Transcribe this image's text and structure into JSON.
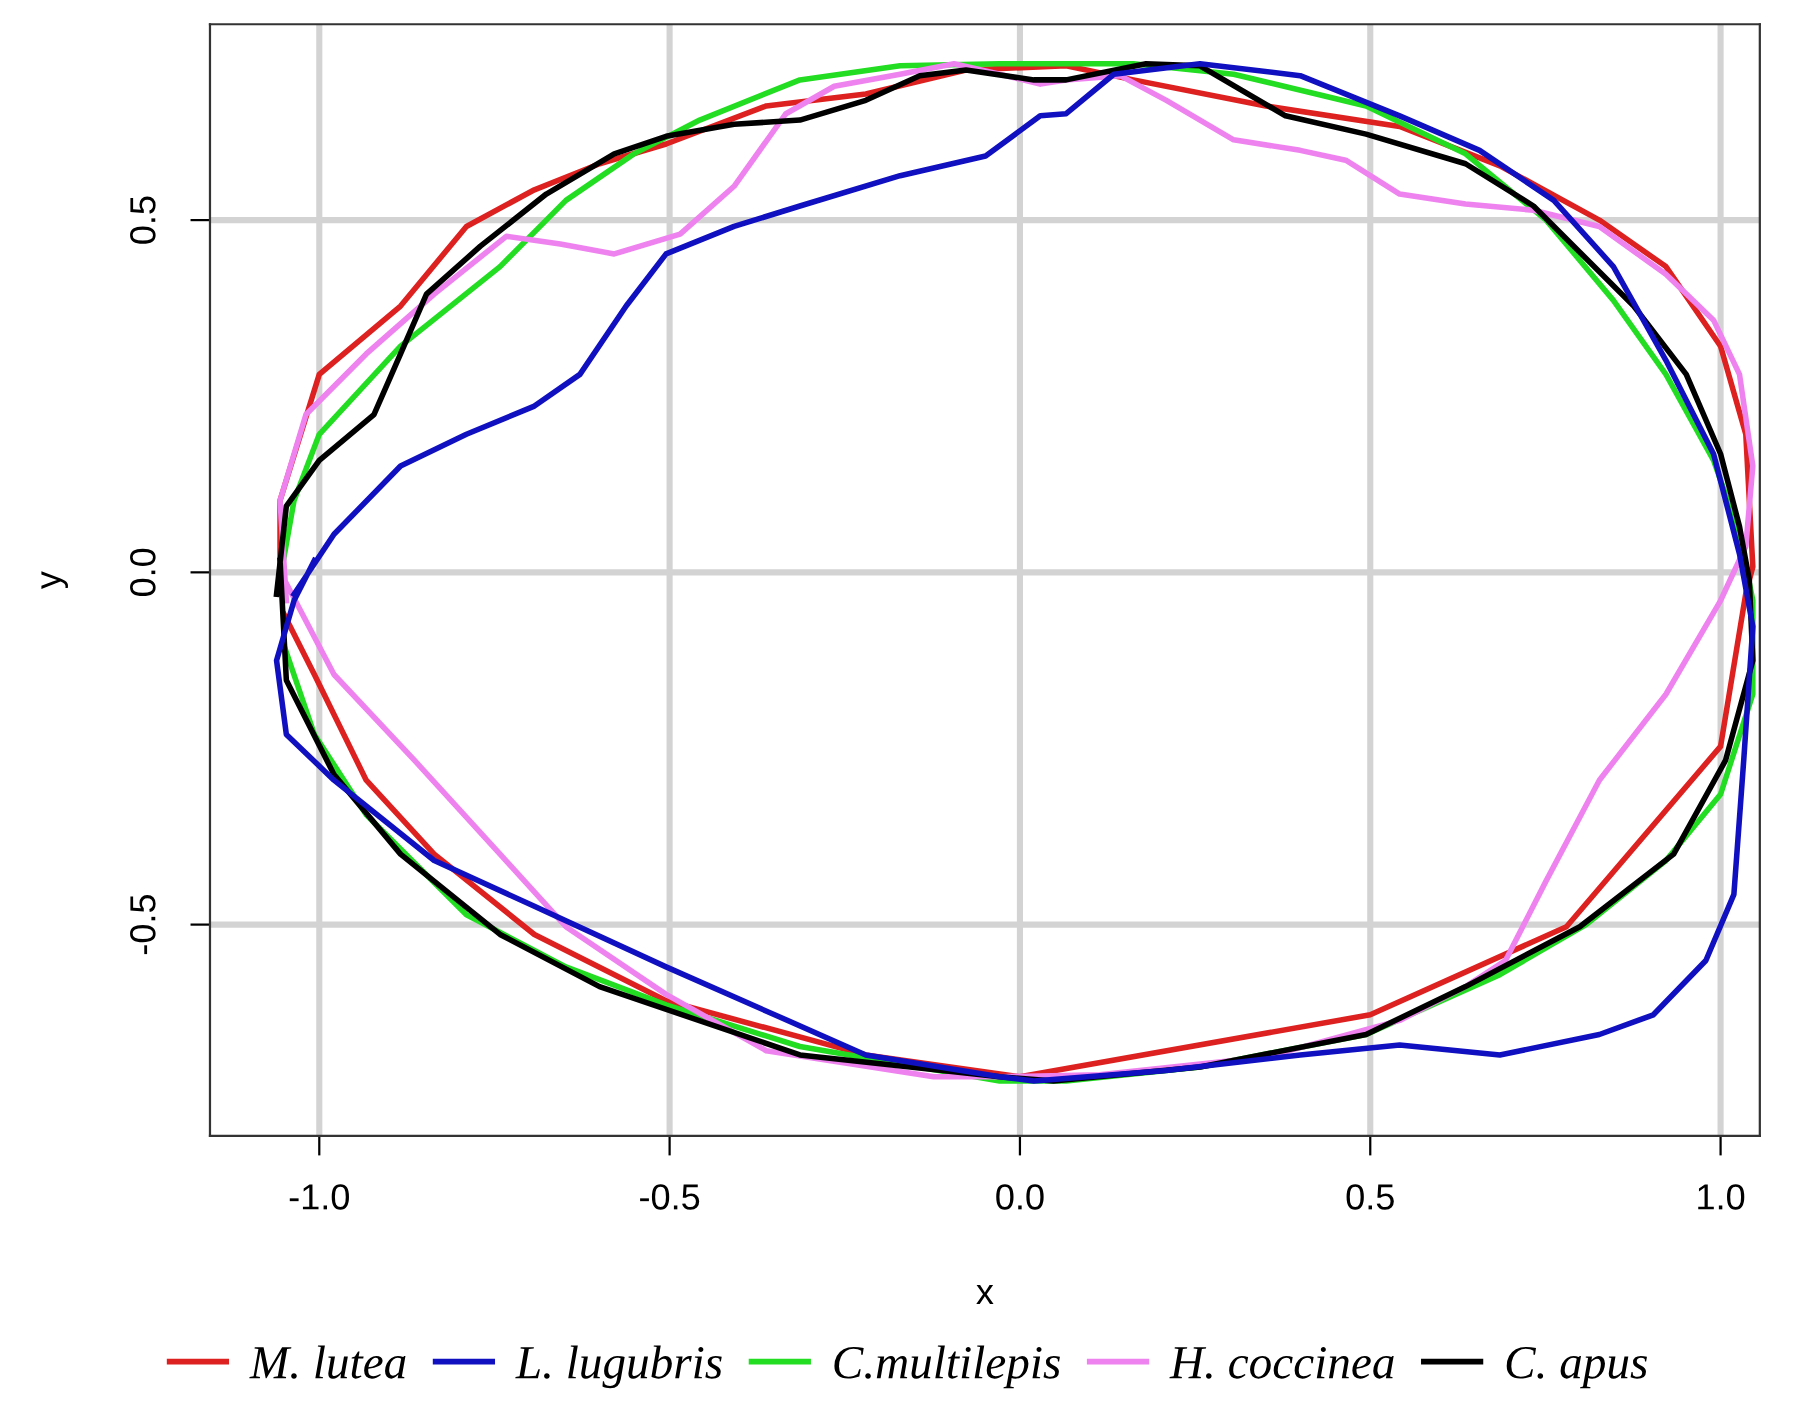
{
  "chart_data": {
    "type": "line",
    "xlabel": "x",
    "ylabel": "y",
    "xlim": [
      -1.156,
      1.056
    ],
    "ylim": [
      -0.8,
      0.778
    ],
    "xticks": [
      {
        "value": -1,
        "label": "-1.0"
      },
      {
        "value": -0.5,
        "label": "-0.5"
      },
      {
        "value": 0,
        "label": "0.0"
      },
      {
        "value": 0.5,
        "label": "0.5"
      },
      {
        "value": 1,
        "label": "1.0"
      }
    ],
    "yticks": [
      {
        "value": -0.5,
        "label": "-0.5"
      },
      {
        "value": 0,
        "label": "0.0"
      },
      {
        "value": 0.5,
        "label": "0.5"
      }
    ],
    "grid": true,
    "legend": "bottom",
    "marker": "none",
    "line_style": "solid",
    "series": [
      {
        "name": "M. lutea",
        "color": "#dd2020",
        "x": [
          -1.056,
          -1.056,
          -1.0,
          -0.884,
          -0.79,
          -0.693,
          -0.6,
          -0.505,
          -0.362,
          -0.22,
          -0.077,
          0.066,
          0.162,
          0.351,
          0.542,
          0.685,
          0.827,
          0.922,
          1.0,
          1.036,
          1.046,
          1.036,
          1.0,
          0.78,
          0.5,
          0.0,
          -0.22,
          -0.505,
          -0.693,
          -0.836,
          -0.933,
          -1.007,
          -1.05
        ],
        "values": [
          0.0,
          0.102,
          0.281,
          0.378,
          0.491,
          0.543,
          0.58,
          0.608,
          0.662,
          0.679,
          0.713,
          0.719,
          0.699,
          0.662,
          0.633,
          0.577,
          0.5,
          0.434,
          0.321,
          0.196,
          0.008,
          -0.03,
          -0.247,
          -0.503,
          -0.628,
          -0.716,
          -0.685,
          -0.608,
          -0.514,
          -0.4,
          -0.295,
          -0.145,
          -0.06
        ]
      },
      {
        "name": "L. lugubris",
        "color": "#1010c0",
        "x": [
          -1.036,
          -0.979,
          -0.884,
          -0.79,
          -0.693,
          -0.628,
          -0.562,
          -0.505,
          -0.408,
          -0.314,
          -0.171,
          -0.049,
          0.029,
          0.066,
          0.134,
          0.257,
          0.4,
          0.542,
          0.656,
          0.762,
          0.847,
          0.922,
          0.99,
          1.027,
          1.046,
          1.033,
          1.019,
          0.979,
          0.904,
          0.827,
          0.685,
          0.542,
          0.4,
          0.209,
          0.02,
          -0.029,
          -0.22,
          -0.505,
          -0.693,
          -0.836,
          -0.979,
          -1.047,
          -1.061,
          -1.036,
          -1.007
        ],
        "values": [
          -0.031,
          0.054,
          0.151,
          0.196,
          0.236,
          0.281,
          0.378,
          0.452,
          0.491,
          0.52,
          0.563,
          0.591,
          0.648,
          0.651,
          0.707,
          0.722,
          0.705,
          0.648,
          0.599,
          0.528,
          0.434,
          0.301,
          0.168,
          0.026,
          -0.077,
          -0.267,
          -0.457,
          -0.551,
          -0.628,
          -0.656,
          -0.685,
          -0.671,
          -0.685,
          -0.707,
          -0.722,
          -0.716,
          -0.685,
          -0.56,
          -0.474,
          -0.409,
          -0.295,
          -0.23,
          -0.125,
          -0.04,
          0.017
        ]
      },
      {
        "name": "C.multilepis",
        "color": "#22dd22",
        "x": [
          -1.056,
          -1.036,
          -1.0,
          -0.884,
          -0.742,
          -0.648,
          -0.551,
          -0.457,
          -0.314,
          -0.171,
          -0.029,
          0.162,
          0.305,
          0.494,
          0.636,
          0.751,
          0.847,
          0.922,
          0.99,
          1.027,
          1.046,
          1.046,
          1.0,
          0.922,
          0.808,
          0.685,
          0.494,
          0.257,
          0.066,
          -0.029,
          -0.314,
          -0.505,
          -0.648,
          -0.79,
          -0.933,
          -1.007,
          -1.05
        ],
        "values": [
          -0.01,
          0.102,
          0.196,
          0.321,
          0.434,
          0.528,
          0.594,
          0.642,
          0.699,
          0.719,
          0.722,
          0.722,
          0.707,
          0.662,
          0.594,
          0.5,
          0.386,
          0.281,
          0.159,
          0.054,
          -0.04,
          -0.173,
          -0.315,
          -0.409,
          -0.5,
          -0.571,
          -0.656,
          -0.702,
          -0.722,
          -0.722,
          -0.673,
          -0.614,
          -0.56,
          -0.486,
          -0.344,
          -0.23,
          -0.105
        ]
      },
      {
        "name": "H. coccinea",
        "color": "#ee82ee",
        "x": [
          -1.047,
          -1.056,
          -1.019,
          -0.933,
          -0.836,
          -0.733,
          -0.656,
          -0.579,
          -0.485,
          -0.408,
          -0.334,
          -0.265,
          -0.171,
          -0.094,
          -0.029,
          0.029,
          0.066,
          0.143,
          0.209,
          0.305,
          0.4,
          0.465,
          0.542,
          0.636,
          0.733,
          0.827,
          0.922,
          0.99,
          1.027,
          1.046,
          1.036,
          1.0,
          0.922,
          0.827,
          0.751,
          0.693,
          0.636,
          0.542,
          0.351,
          0.114,
          -0.029,
          -0.123,
          -0.362,
          -0.505,
          -0.648,
          -0.742,
          -0.864,
          -0.979,
          -1.05
        ],
        "values": [
          -0.04,
          0.102,
          0.224,
          0.31,
          0.395,
          0.477,
          0.466,
          0.452,
          0.48,
          0.548,
          0.651,
          0.69,
          0.707,
          0.722,
          0.707,
          0.693,
          0.699,
          0.705,
          0.67,
          0.614,
          0.599,
          0.585,
          0.537,
          0.523,
          0.514,
          0.491,
          0.423,
          0.358,
          0.281,
          0.151,
          0.037,
          -0.04,
          -0.173,
          -0.295,
          -0.438,
          -0.551,
          -0.588,
          -0.636,
          -0.688,
          -0.713,
          -0.716,
          -0.716,
          -0.679,
          -0.599,
          -0.503,
          -0.4,
          -0.267,
          -0.145,
          -0.01
        ]
      },
      {
        "name": "C. apus",
        "color": "#000000",
        "x": [
          -1.061,
          -1.047,
          -1.0,
          -0.922,
          -0.884,
          -0.847,
          -0.77,
          -0.676,
          -0.579,
          -0.505,
          -0.408,
          -0.314,
          -0.22,
          -0.143,
          -0.077,
          0.02,
          0.066,
          0.18,
          0.257,
          0.379,
          0.494,
          0.636,
          0.733,
          0.876,
          0.951,
          1.0,
          1.027,
          1.041,
          1.046,
          1.007,
          0.933,
          0.799,
          0.636,
          0.494,
          0.257,
          0.048,
          -0.029,
          -0.314,
          -0.6,
          -0.742,
          -0.884,
          -0.979,
          -1.047,
          -1.056
        ],
        "values": [
          -0.031,
          0.094,
          0.159,
          0.224,
          0.31,
          0.395,
          0.463,
          0.537,
          0.594,
          0.619,
          0.636,
          0.642,
          0.67,
          0.705,
          0.713,
          0.699,
          0.699,
          0.722,
          0.719,
          0.648,
          0.622,
          0.58,
          0.52,
          0.378,
          0.281,
          0.168,
          0.065,
          -0.011,
          -0.125,
          -0.267,
          -0.4,
          -0.503,
          -0.588,
          -0.656,
          -0.702,
          -0.722,
          -0.716,
          -0.685,
          -0.588,
          -0.514,
          -0.4,
          -0.287,
          -0.153,
          0.017
        ]
      }
    ]
  }
}
